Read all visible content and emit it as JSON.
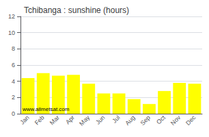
{
  "chart_data": {
    "type": "bar",
    "title": "Tchibanga : sunshine (hours)",
    "categories": [
      "Jan",
      "Feb",
      "Mar",
      "Apr",
      "May",
      "Jun",
      "Jul",
      "Aug",
      "Sep",
      "Oct",
      "Nov",
      "Dec"
    ],
    "values": [
      4.4,
      5.0,
      4.7,
      4.8,
      3.7,
      2.5,
      2.5,
      1.8,
      1.2,
      2.8,
      3.8,
      3.7
    ],
    "color": "#FFFF00",
    "ylim": [
      0,
      12
    ],
    "yticks": [
      0,
      2,
      4,
      6,
      8,
      10,
      12
    ],
    "grid": true,
    "annotations": [
      "www.allmetsat.com"
    ]
  }
}
